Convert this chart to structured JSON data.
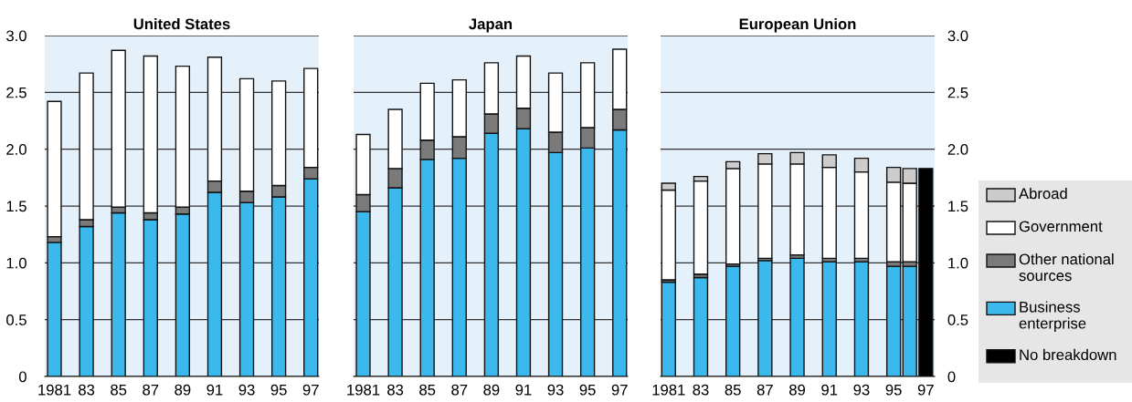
{
  "chart_data": [
    {
      "type": "bar",
      "title": "United States",
      "stacked": true,
      "x": [
        1981,
        1983,
        1985,
        1987,
        1989,
        1991,
        1993,
        1995,
        1997
      ],
      "xlim": [
        1980.4,
        1997.5
      ],
      "xticks": [
        {
          "value": 1981,
          "label": "1981"
        },
        {
          "value": 1983,
          "label": "83"
        },
        {
          "value": 1985,
          "label": "85"
        },
        {
          "value": 1987,
          "label": "87"
        },
        {
          "value": 1989,
          "label": "89"
        },
        {
          "value": 1991,
          "label": "91"
        },
        {
          "value": 1993,
          "label": "93"
        },
        {
          "value": 1995,
          "label": "95"
        },
        {
          "value": 1997,
          "label": "97"
        }
      ],
      "ylim": [
        0,
        3.0
      ],
      "yticks": [
        0,
        0.5,
        {
          "value": 1,
          "label": "1.0"
        },
        1.5,
        {
          "value": 2,
          "label": "2.0"
        },
        2.5,
        {
          "value": 3,
          "label": "3.0"
        }
      ],
      "grid": "y",
      "series": [
        {
          "color": "#3bb9ec",
          "values": [
            1.18,
            1.32,
            1.44,
            1.38,
            1.43,
            1.62,
            1.53,
            1.58,
            1.74
          ]
        },
        {
          "color": "#7a7a7a",
          "values": [
            0.05,
            0.06,
            0.05,
            0.06,
            0.06,
            0.1,
            0.1,
            0.1,
            0.1
          ]
        },
        {
          "color": "#ffffff",
          "values": [
            1.19,
            1.29,
            1.38,
            1.38,
            1.24,
            1.09,
            0.99,
            0.92,
            0.87
          ]
        }
      ]
    },
    {
      "type": "bar",
      "title": "Japan",
      "stacked": true,
      "x": [
        1981,
        1983,
        1985,
        1987,
        1989,
        1991,
        1993,
        1995,
        1997
      ],
      "xlim": [
        1980.4,
        1997.5
      ],
      "xticks": [
        {
          "value": 1981,
          "label": "1981"
        },
        {
          "value": 1983,
          "label": "83"
        },
        {
          "value": 1985,
          "label": "85"
        },
        {
          "value": 1987,
          "label": "87"
        },
        {
          "value": 1989,
          "label": "89"
        },
        {
          "value": 1991,
          "label": "91"
        },
        {
          "value": 1993,
          "label": "93"
        },
        {
          "value": 1995,
          "label": "95"
        },
        {
          "value": 1997,
          "label": "97"
        }
      ],
      "ylim": [
        0,
        3.0
      ],
      "yticks": [
        0,
        0.5,
        1,
        1.5,
        2,
        2.5,
        3
      ],
      "grid": "y",
      "tick_labels": "x",
      "series": [
        {
          "color": "#3bb9ec",
          "values": [
            1.45,
            1.66,
            1.91,
            1.92,
            2.14,
            2.18,
            1.97,
            2.01,
            2.17
          ]
        },
        {
          "color": "#7a7a7a",
          "values": [
            0.15,
            0.17,
            0.17,
            0.19,
            0.17,
            0.18,
            0.18,
            0.18,
            0.18
          ]
        },
        {
          "color": "#ffffff",
          "values": [
            0.53,
            0.52,
            0.5,
            0.5,
            0.45,
            0.46,
            0.52,
            0.57,
            0.53
          ]
        }
      ]
    },
    {
      "type": "bar",
      "title": "European Union",
      "stacked": true,
      "x": [
        1981,
        1983,
        1985,
        1987,
        1989,
        1991,
        1993,
        1995,
        1996,
        1997
      ],
      "xlim": [
        1980.5,
        1997.55
      ],
      "xticks": [
        {
          "value": 1981,
          "label": "1981"
        },
        {
          "value": 1983,
          "label": "83"
        },
        {
          "value": 1985,
          "label": "85"
        },
        {
          "value": 1987,
          "label": "87"
        },
        {
          "value": 1989,
          "label": "89"
        },
        {
          "value": 1991,
          "label": "91"
        },
        {
          "value": 1993,
          "label": "93"
        },
        {
          "value": 1995,
          "label": "95"
        },
        {
          "value": 1997,
          "label": "97"
        }
      ],
      "ylim": [
        0,
        3.0
      ],
      "yticks": [
        0,
        0.5,
        {
          "value": 1,
          "label": "1.0"
        },
        1.5,
        {
          "value": 2,
          "label": "2.0"
        },
        2.5,
        {
          "value": 3,
          "label": "3.0"
        }
      ],
      "grid": "y",
      "legend": "right",
      "series": [
        {
          "name": "No breakdown",
          "color": "#000000",
          "values": [
            null,
            null,
            null,
            null,
            null,
            null,
            null,
            null,
            null,
            1.83
          ]
        },
        {
          "name": "Business enterprise",
          "color": "#3bb9ec",
          "values": [
            0.83,
            0.87,
            0.97,
            1.02,
            1.04,
            1.01,
            1.01,
            0.97,
            0.97,
            null
          ]
        },
        {
          "name": "Other national sources",
          "color": "#7a7a7a",
          "values": [
            0.02,
            0.03,
            0.02,
            0.02,
            0.03,
            0.03,
            0.03,
            0.04,
            0.04,
            null
          ]
        },
        {
          "name": "Government",
          "color": "#ffffff",
          "values": [
            0.79,
            0.82,
            0.84,
            0.83,
            0.8,
            0.8,
            0.76,
            0.7,
            0.69,
            null
          ]
        },
        {
          "name": "Abroad",
          "color": "#cccccc",
          "values": [
            0.06,
            0.04,
            0.06,
            0.09,
            0.1,
            0.11,
            0.12,
            0.13,
            0.13,
            null
          ]
        }
      ]
    }
  ]
}
